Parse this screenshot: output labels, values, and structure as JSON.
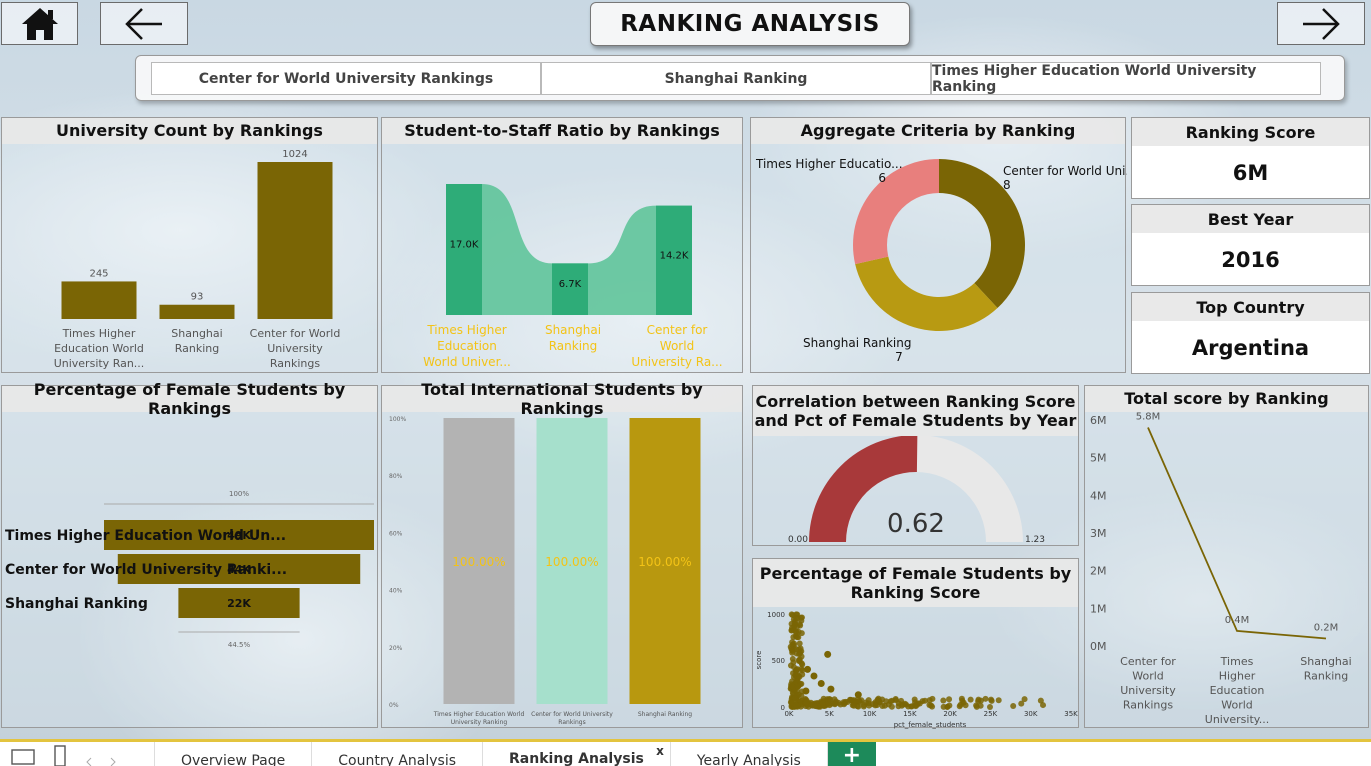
{
  "header": {
    "title": "RANKING ANALYSIS",
    "home_icon": "home-icon",
    "back_icon": "arrow-left-icon",
    "forward_icon": "arrow-right-icon"
  },
  "slicer": {
    "items": [
      "Center for World University Rankings",
      "Shanghai Ranking",
      "Times Higher Education World University Ranking"
    ]
  },
  "cards": {
    "university_count": {
      "title": "University Count by Rankings"
    },
    "student_staff": {
      "title": "Student-to-Staff Ratio by Rankings"
    },
    "aggregate": {
      "title": "Aggregate Criteria by Ranking"
    },
    "female_pct": {
      "title": "Percentage of Female Students by Rankings"
    },
    "intl": {
      "title": "Total International Students by Rankings"
    },
    "correlation": {
      "title_line1": "Correlation between Ranking Score",
      "title_line2": "and Pct of Female Students by Year"
    },
    "scatter": {
      "title_line1": "Percentage of Female Students by",
      "title_line2": "Ranking Score"
    },
    "total_score": {
      "title": "Total score by Ranking"
    }
  },
  "kpis": [
    {
      "label": "Ranking Score",
      "value": "6M"
    },
    {
      "label": "Best Year",
      "value": "2016"
    },
    {
      "label": "Top Country",
      "value": "Argentina"
    }
  ],
  "chart_data": [
    {
      "type": "bar",
      "name": "University Count by Rankings",
      "categories": [
        "Times Higher Education World University Ran...",
        "Shanghai Ranking",
        "Center for World University Rankings"
      ],
      "category_lines": [
        [
          "Times Higher",
          "Education World",
          "University Ran..."
        ],
        [
          "Shanghai",
          "Ranking"
        ],
        [
          "Center for World",
          "University",
          "Rankings"
        ]
      ],
      "values": [
        245,
        93,
        1024
      ],
      "labels": [
        "245",
        "93",
        "1024"
      ],
      "color": "#7a6505"
    },
    {
      "type": "bar",
      "name": "Student-to-Staff Ratio by Rankings",
      "style": "ribbon",
      "category_lines": [
        [
          "Times Higher",
          "Education",
          "World Univer..."
        ],
        [
          "Shanghai",
          "Ranking"
        ],
        [
          "Center for",
          "World",
          "University Ra..."
        ]
      ],
      "values": [
        17000,
        6700,
        14200
      ],
      "labels": [
        "17.0K",
        "6.7K",
        "14.2K"
      ],
      "color": "#2eac78",
      "ribbon_color": "#5fc49a",
      "label_color": "#f3c316"
    },
    {
      "type": "pie",
      "name": "Aggregate Criteria by Ranking",
      "style": "donut",
      "slices": [
        {
          "label": "Center for World Uni...",
          "value": 8,
          "color": "#7a6505"
        },
        {
          "label": "Shanghai Ranking",
          "value": 7,
          "color": "#b89a12"
        },
        {
          "label": "Times Higher Educatio...",
          "value": 6,
          "color": "#e87f7d"
        }
      ]
    },
    {
      "type": "bar",
      "name": "Percentage of Female Students by Rankings",
      "style": "funnel",
      "categories": [
        "Times Higher Education World Un...",
        "Center for World University Ranki...",
        "Shanghai Ranking"
      ],
      "values": [
        49000,
        44000,
        22000
      ],
      "labels": [
        "49K",
        "44K",
        "22K"
      ],
      "top_pct": "100%",
      "bottom_pct": "44.5%",
      "color": "#7a6505"
    },
    {
      "type": "bar",
      "name": "Total International Students by Rankings",
      "style": "100% stacked",
      "categories": [
        "Times Higher Education World University Ranking",
        "Center for World University Rankings",
        "Shanghai Ranking"
      ],
      "values": [
        100,
        100,
        100
      ],
      "labels": [
        "100.00%",
        "100.00%",
        "100.00%"
      ],
      "colors": [
        "#b3b3b3",
        "#a6e0cc",
        "#b8980f"
      ],
      "yticks": [
        "100%",
        "80%",
        "60%",
        "40%",
        "20%",
        "0%"
      ],
      "label_color": "#f3c316"
    },
    {
      "type": "gauge",
      "name": "Correlation",
      "value": 0.62,
      "min": 0,
      "max": 1.23,
      "value_label": "0.62",
      "min_label": "0.00",
      "max_label": "1.23",
      "color": "#a8393a"
    },
    {
      "type": "scatter",
      "xlabel": "pct_female_students",
      "ylabel": "score",
      "xticks": [
        "0K",
        "5K",
        "10K",
        "15K",
        "20K",
        "25K",
        "30K",
        "35K"
      ],
      "yticks": [
        "1000",
        "500",
        "0"
      ],
      "xlim": [
        0,
        35000
      ],
      "ylim": [
        0,
        1000
      ],
      "color": "#7a6505"
    },
    {
      "type": "line",
      "name": "Total score by Ranking",
      "category_lines": [
        [
          "Center for",
          "World",
          "University",
          "Rankings"
        ],
        [
          "Times",
          "Higher",
          "Education",
          "World",
          "University..."
        ],
        [
          "Shanghai",
          "Ranking"
        ]
      ],
      "values": [
        5800000,
        400000,
        200000
      ],
      "labels": [
        "5.8M",
        "0.4M",
        "0.2M"
      ],
      "yticks": [
        "6M",
        "5M",
        "4M",
        "3M",
        "2M",
        "1M",
        "0M"
      ],
      "ylim": [
        0,
        6000000
      ],
      "color": "#7a6505"
    }
  ],
  "tabs": {
    "items": [
      "Overview Page",
      "Country Analysis",
      "Ranking Analysis",
      "Yearly Analysis"
    ],
    "active": "Ranking Analysis",
    "close": "x",
    "add": "+"
  }
}
